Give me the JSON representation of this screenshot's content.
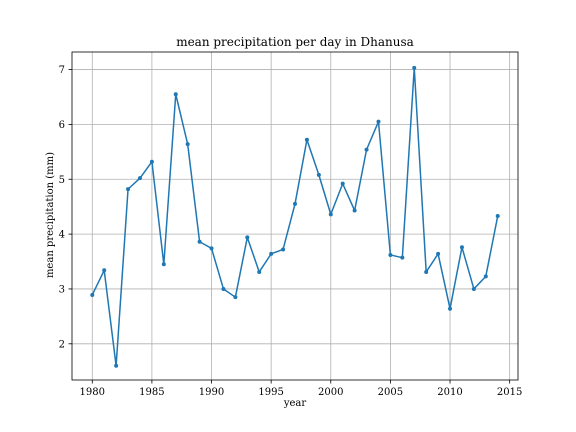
{
  "chart_data": {
    "type": "line",
    "title": "mean precipitation per day in Dhanusa",
    "xlabel": "year",
    "ylabel": "mean precipitation (mm)",
    "xlim": [
      1978.3,
      2015.7
    ],
    "ylim": [
      1.34,
      7.32
    ],
    "xticks": [
      1980,
      1985,
      1990,
      1995,
      2000,
      2005,
      2010,
      2015
    ],
    "yticks": [
      2,
      3,
      4,
      5,
      6,
      7
    ],
    "grid": true,
    "line_color": "#1f77b4",
    "series": [
      {
        "x": [
          1980,
          1981,
          1982,
          1983,
          1984,
          1985,
          1986,
          1987,
          1988,
          1989,
          1990,
          1991,
          1992,
          1993,
          1994,
          1995,
          1996,
          1997,
          1998,
          1999,
          2000,
          2001,
          2002,
          2003,
          2004,
          2005,
          2006,
          2007,
          2008,
          2009,
          2010,
          2011,
          2012,
          2013,
          2014
        ],
        "y": [
          2.89,
          3.34,
          1.6,
          4.82,
          5.02,
          5.32,
          3.45,
          6.55,
          5.64,
          3.86,
          3.74,
          3.0,
          2.85,
          3.94,
          3.31,
          3.64,
          3.72,
          4.55,
          5.72,
          5.08,
          4.36,
          4.92,
          4.43,
          5.54,
          6.05,
          3.62,
          3.57,
          7.03,
          3.31,
          3.64,
          2.64,
          3.76,
          3.0,
          3.23,
          4.33
        ]
      }
    ]
  }
}
